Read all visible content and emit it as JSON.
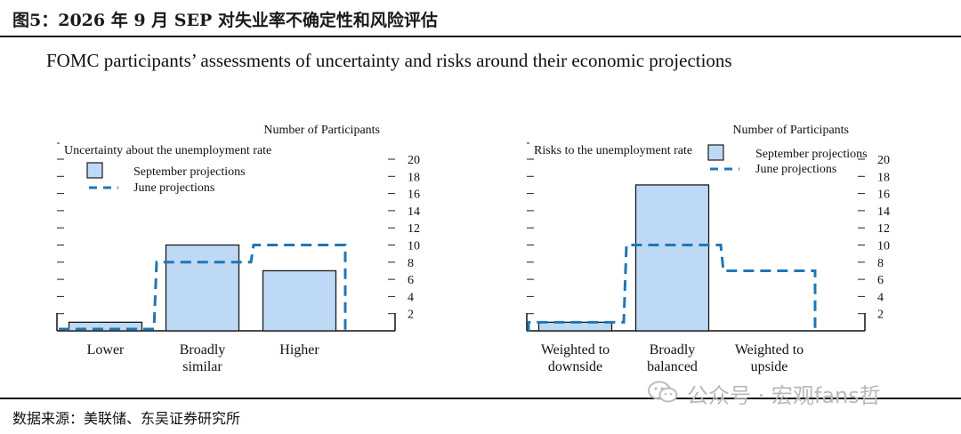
{
  "header": {
    "title": "图5：2026 年 9 月 SEP 对失业率不确定性和风险评估"
  },
  "subtitle": "FOMC participants’ assessments of uncertainty and risks around their economic projections",
  "source": "数据来源：美联储、东吴证券研究所",
  "watermark": {
    "text": "公众号 · 宏观fans哲",
    "icon": "wechat-icon"
  },
  "colors": {
    "bar_fill": "#bdd9f5",
    "bar_stroke": "#1a1a1a",
    "dash": "#1f77b4",
    "text": "#111111"
  },
  "chart_data": [
    {
      "type": "bar",
      "title": "Uncertainty about the unemployment rate",
      "ylabel": "Number of Participants",
      "categories": [
        [
          "Lower"
        ],
        [
          "Broadly",
          "similar"
        ],
        [
          "Higher"
        ]
      ],
      "series": [
        {
          "name": "September projections",
          "style": "bar",
          "values": [
            1,
            10,
            7
          ]
        },
        {
          "name": "June projections",
          "style": "dashed-step",
          "values": [
            0,
            8,
            10
          ]
        }
      ],
      "ylim": [
        0,
        20
      ],
      "yticks": [
        2,
        4,
        6,
        8,
        10,
        12,
        14,
        16,
        18,
        20
      ],
      "legend": "top-left"
    },
    {
      "type": "bar",
      "title": "Risks to the unemployment rate",
      "ylabel": "Number of Participants",
      "categories": [
        [
          "Weighted to",
          "downside"
        ],
        [
          "Broadly",
          "balanced"
        ],
        [
          "Weighted to",
          "upside"
        ]
      ],
      "series": [
        {
          "name": "September projections",
          "style": "bar",
          "values": [
            1,
            17,
            0
          ]
        },
        {
          "name": "June projections",
          "style": "dashed-step",
          "values": [
            1,
            10,
            7
          ]
        }
      ],
      "ylim": [
        0,
        20
      ],
      "yticks": [
        2,
        4,
        6,
        8,
        10,
        12,
        14,
        16,
        18,
        20
      ],
      "legend": "top-right"
    }
  ]
}
